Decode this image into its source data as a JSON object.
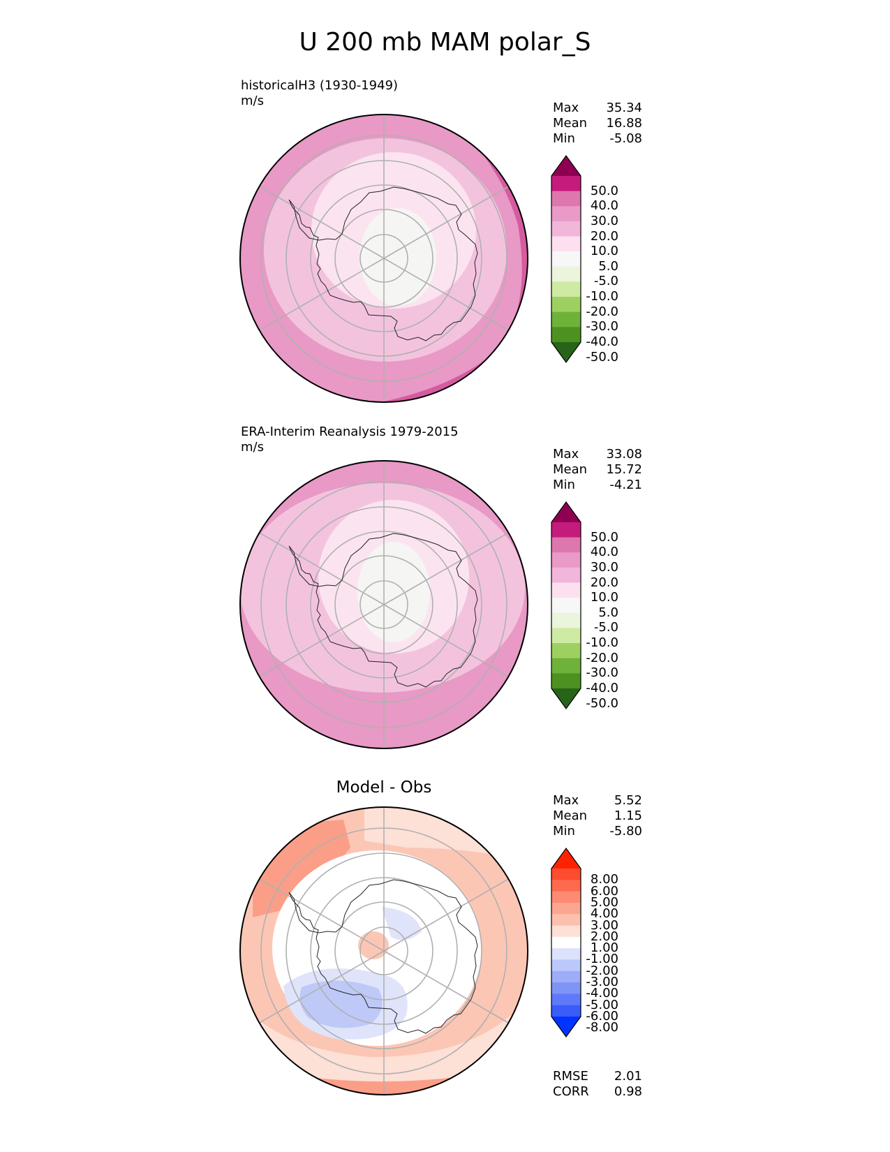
{
  "title": "U 200 mb MAM polar_S",
  "panels": [
    {
      "id": "model",
      "title": "historicalH3 (1930-1949)",
      "units": "m/s",
      "stats": [
        {
          "label": "Max",
          "value": "35.34"
        },
        {
          "label": "Mean",
          "value": "16.88"
        },
        {
          "label": "Min",
          "value": "-5.08"
        }
      ]
    },
    {
      "id": "obs",
      "title": "ERA-Interim Reanalysis 1979-2015",
      "units": "m/s",
      "stats": [
        {
          "label": "Max",
          "value": "33.08"
        },
        {
          "label": "Mean",
          "value": "15.72"
        },
        {
          "label": "Min",
          "value": "-4.21"
        }
      ]
    },
    {
      "id": "diff",
      "title": "Model - Obs",
      "stats": [
        {
          "label": "Max",
          "value": "5.52"
        },
        {
          "label": "Mean",
          "value": "1.15"
        },
        {
          "label": "Min",
          "value": "-5.80"
        }
      ],
      "metrics": [
        {
          "label": "RMSE",
          "value": "2.01"
        },
        {
          "label": "CORR",
          "value": "0.98"
        }
      ]
    }
  ],
  "colorbar_main": {
    "labels": [
      "50.0",
      "40.0",
      "30.0",
      "20.0",
      "10.0",
      "5.0",
      "-5.0",
      "-10.0",
      "-20.0",
      "-30.0",
      "-40.0",
      "-50.0"
    ],
    "colors": [
      "#8e0152",
      "#c51b7d",
      "#de77ae",
      "#f1b6da",
      "#fde0ef",
      "#f7f7f7",
      "#e6f5d0",
      "#b8e186",
      "#7fbc41",
      "#4d9221",
      "#276419"
    ],
    "extend_top": "#8e0152",
    "extend_bottom": "#276419",
    "colors_top_to_bottom": [
      "#c51b7d",
      "#de77ae",
      "#e99ac6",
      "#f1b6da",
      "#fde0ef",
      "#f7f7f7",
      "#eaf5dc",
      "#cfeaa3",
      "#9dd061",
      "#6fb23a",
      "#4d9221"
    ]
  },
  "colorbar_diff": {
    "labels": [
      "8.00",
      "6.00",
      "5.00",
      "4.00",
      "3.00",
      "2.00",
      "1.00",
      "-1.00",
      "-2.00",
      "-3.00",
      "-4.00",
      "-5.00",
      "-6.00",
      "-8.00"
    ],
    "extend_top": "#ff2200",
    "extend_bottom": "#0033ff",
    "colors_top_to_bottom": [
      "#fd4c30",
      "#fe6a4e",
      "#fd8b74",
      "#fca58f",
      "#fcc0ae",
      "#fde0d6",
      "#ffffff",
      "#dce2fb",
      "#bcc8fb",
      "#9dadf8",
      "#7f95f6",
      "#5f7af8",
      "#3a5cf9"
    ]
  },
  "map_colors": {
    "m_outer": "#e899c5",
    "m_strong": "#d65ba1",
    "m_mid": "#f3c3de",
    "m_light": "#fbe4f0",
    "m_center": "#f5f5f4",
    "d_outer": "#fcc6b5",
    "d_mid": "#fde0d6",
    "d_white": "#ffffff",
    "d_strong": "#fb9e88",
    "d_blue1": "#dfe4fb",
    "d_blue2": "#bec9f8"
  }
}
